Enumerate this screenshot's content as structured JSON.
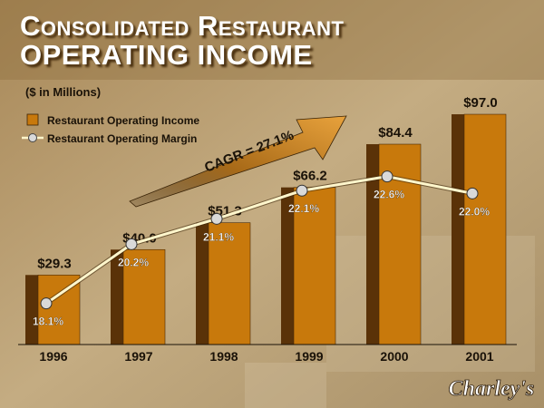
{
  "header": {
    "title_line1": "Consolidated Restaurant",
    "title_line2": "Operating Income",
    "subtitle": "($ in Millions)"
  },
  "logo": {
    "text": "Charley's"
  },
  "colors": {
    "bar_front": "#c8790c",
    "bar_side": "#5a3208",
    "line": "#fff6cc",
    "marker": "#d9d9d9"
  },
  "chart_data": {
    "type": "bar",
    "title": "",
    "categories": [
      "1996",
      "1997",
      "1998",
      "1999",
      "2000",
      "2001"
    ],
    "series": [
      {
        "name": "Restaurant Operating Income",
        "type": "bar",
        "values": [
          29.3,
          40.0,
          51.3,
          66.2,
          84.4,
          97.0
        ],
        "labels": [
          "$29.3",
          "$40.0",
          "$51.3",
          "$66.2",
          "$84.4",
          "$97.0"
        ]
      },
      {
        "name": "Restaurant Operating Margin",
        "type": "line",
        "values": [
          18.1,
          20.2,
          21.1,
          22.1,
          22.6,
          22.0
        ],
        "labels": [
          "18.1%",
          "20.2%",
          "21.1%",
          "22.1%",
          "22.6%",
          "22.0%"
        ]
      }
    ],
    "ylim": [
      0,
      110
    ],
    "margin_ylim": [
      16,
      25
    ],
    "annotation": "CAGR = 27.1%",
    "legend_position": "top-left",
    "grid": false
  }
}
